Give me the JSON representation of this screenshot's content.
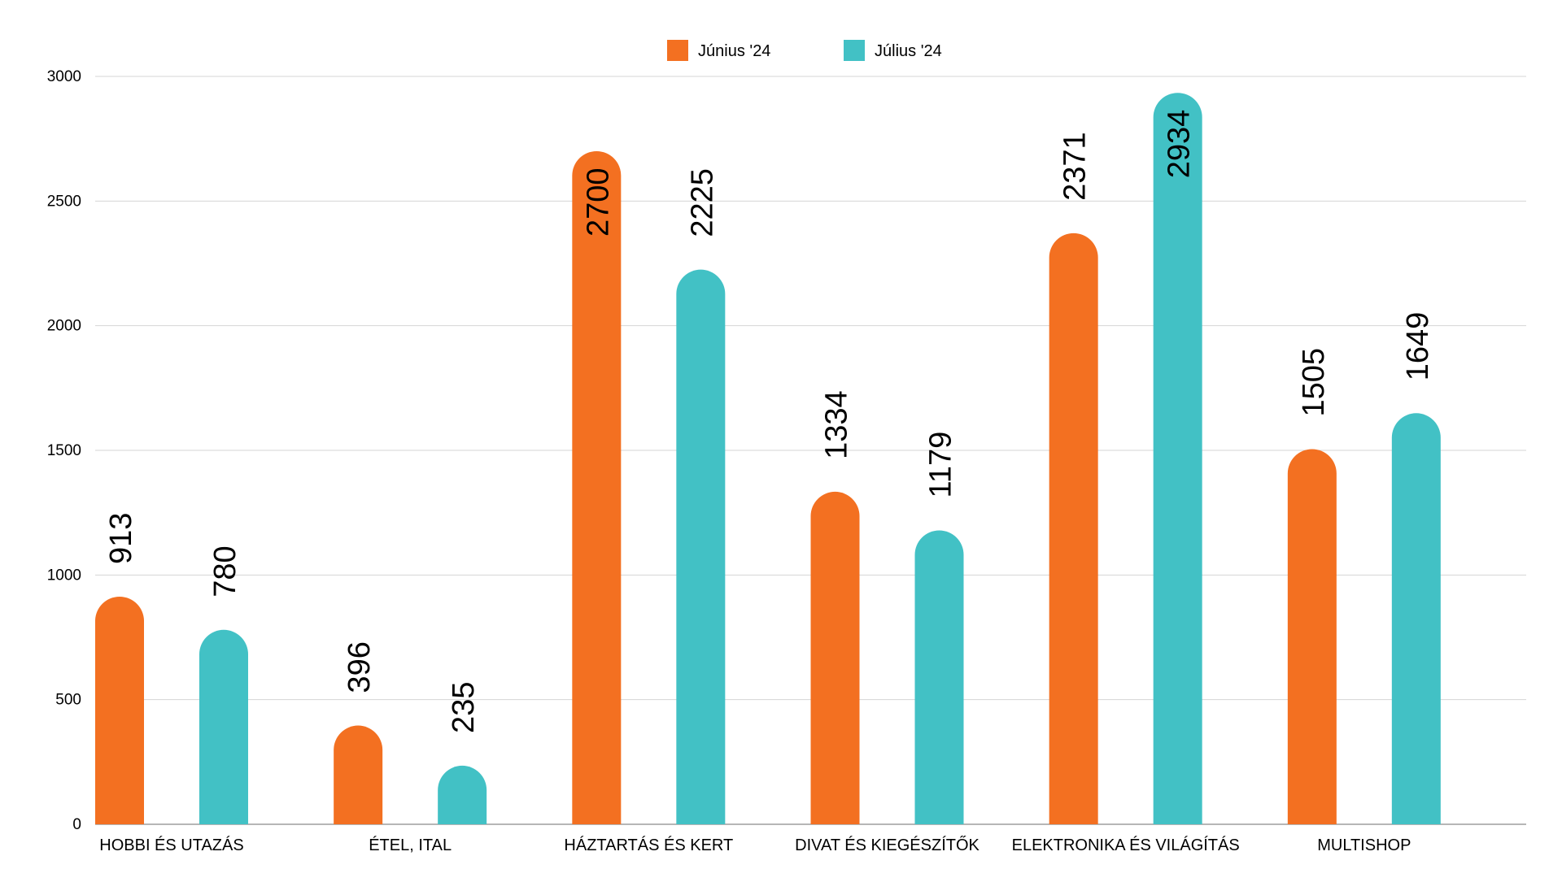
{
  "chart_data": {
    "type": "bar",
    "title": "",
    "xlabel": "",
    "ylabel": "",
    "ylim": [
      0,
      3000
    ],
    "yticks": [
      0,
      500,
      1000,
      1500,
      2000,
      2500,
      3000
    ],
    "grid": true,
    "legend_position": "top-center",
    "categories": [
      "HOBBI ÉS UTAZÁS",
      "ÉTEL, ITAL",
      "HÁZTARTÁS ÉS KERT",
      "DIVAT ÉS KIEGÉSZÍTŐK",
      "ELEKTRONIKA ÉS VILÁGÍTÁS",
      "MULTISHOP"
    ],
    "series": [
      {
        "name": "Június '24",
        "color": "#F37021",
        "values": [
          913,
          396,
          2700,
          1334,
          2371,
          1505
        ]
      },
      {
        "name": "Július '24",
        "color": "#42C1C5",
        "values": [
          780,
          235,
          2225,
          1179,
          2934,
          1649
        ]
      }
    ]
  }
}
